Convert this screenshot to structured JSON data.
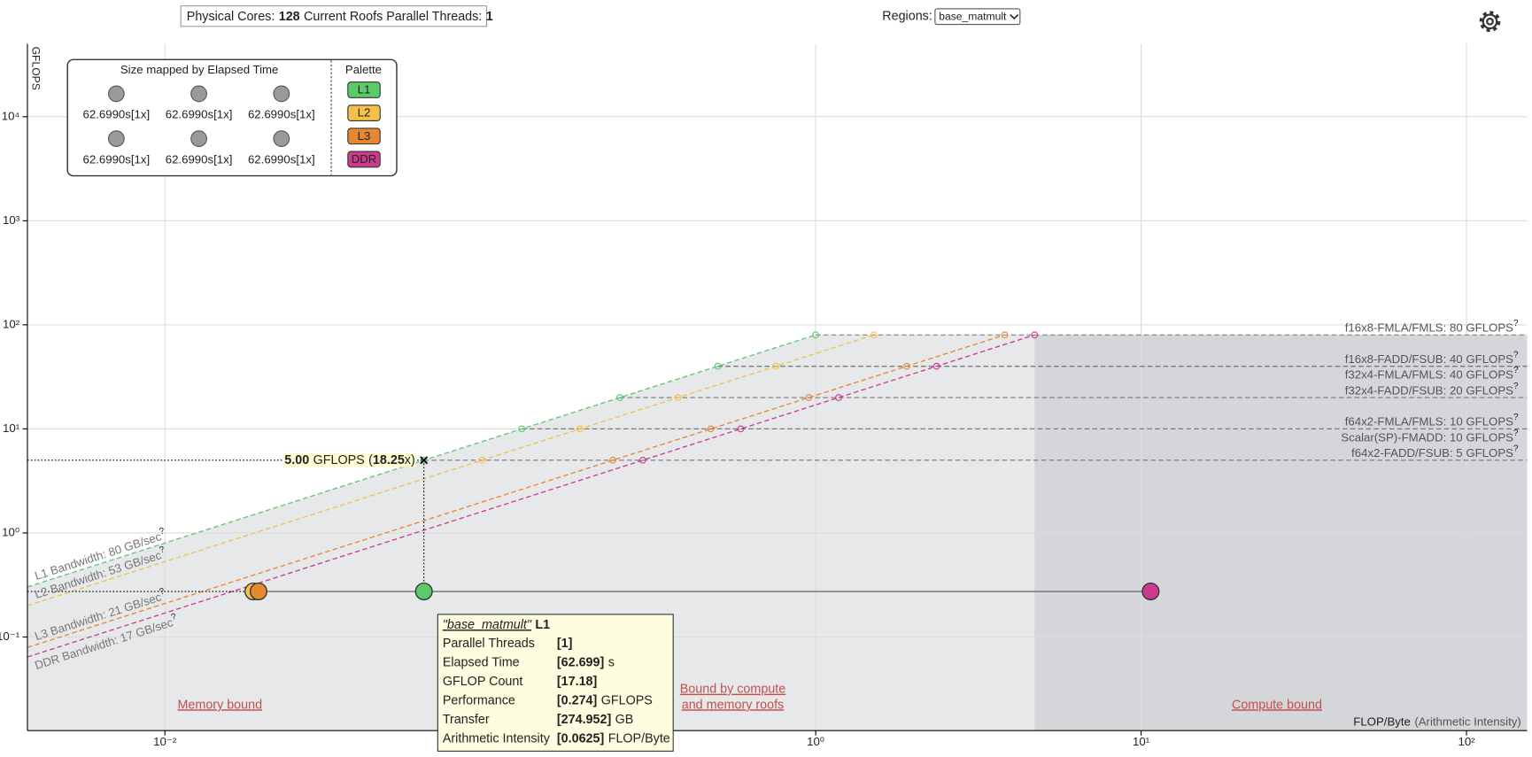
{
  "header": {
    "cores_label": "Physical Cores:",
    "cores": 128,
    "threads_label": "Current Roofs Parallel Threads:",
    "threads": 1,
    "regions_label": "Regions:",
    "region": "base_matmult"
  },
  "chart_data": {
    "type": "roofline",
    "y_label": "GFLOPS",
    "x_label": "FLOP/Byte",
    "x_label_note": "(Arithmetic Intensity)",
    "xscale": "log",
    "yscale": "log",
    "grid": true,
    "xlim": [
      0.00378,
      153.5
    ],
    "ylim": [
      0.0126,
      50000
    ],
    "xticks": [
      {
        "value": 0.01,
        "label": "10⁻²"
      },
      {
        "value": 1,
        "label": "10⁰"
      },
      {
        "value": 10,
        "label": "10¹"
      },
      {
        "value": 100,
        "label": "10²"
      }
    ],
    "yticks": [
      {
        "value": 0.1,
        "label": "10⁻¹"
      },
      {
        "value": 1,
        "label": "10⁰"
      },
      {
        "value": 10,
        "label": "10¹"
      },
      {
        "value": 100,
        "label": "10²"
      },
      {
        "value": 1000,
        "label": "10³"
      },
      {
        "value": 10000,
        "label": "10⁴"
      }
    ],
    "help": "?",
    "compute_roofs": [
      {
        "label": "f16x8-FMLA/FMLS: 80 GFLOPS",
        "value": 80
      },
      {
        "label": "f16x8-FADD/FSUB: 40 GFLOPS",
        "value": 40
      },
      {
        "label": "f32x4-FMLA/FMLS: 40 GFLOPS",
        "value": 40
      },
      {
        "label": "f32x4-FADD/FSUB: 20 GFLOPS",
        "value": 20
      },
      {
        "label": "f64x2-FMLA/FMLS: 10 GFLOPS",
        "value": 10
      },
      {
        "label": "Scalar(SP)-FMADD: 10 GFLOPS",
        "value": 10
      },
      {
        "label": "f64x2-FADD/FSUB: 5 GFLOPS",
        "value": 5
      }
    ],
    "bandwidth_roofs": [
      {
        "label": "L1 Bandwidth: 80 GB/sec",
        "value": 80,
        "color": "#5cc96b"
      },
      {
        "label": "L2 Bandwidth: 53 GB/sec",
        "value": 53,
        "color": "#f5c04a"
      },
      {
        "label": "L3 Bandwidth: 21 GB/sec",
        "value": 21,
        "color": "#e5882f"
      },
      {
        "label": "DDR Bandwidth: 17 GB/sec",
        "value": 17,
        "color": "#cc3a8c"
      }
    ],
    "series": [
      {
        "name": "L1",
        "color": "#5cc96b",
        "x": [
          0.0625
        ],
        "values": [
          0.274
        ]
      },
      {
        "name": "L2",
        "color": "#f5c04a",
        "x": [
          0.0187
        ],
        "values": [
          0.274
        ]
      },
      {
        "name": "L3",
        "color": "#e5882f",
        "x": [
          0.0194
        ],
        "values": [
          0.274
        ]
      },
      {
        "name": "DDR",
        "color": "#cc3a8c",
        "x": [
          10.7
        ],
        "values": [
          0.274
        ]
      }
    ],
    "crosshair": {
      "x": 0.0625,
      "y": 5,
      "y_label": "5.00",
      "unit": "GFLOPS",
      "open": "(",
      "speedup": 18.25,
      "close": "x)"
    },
    "region_labels": [
      "Memory bound",
      "Bound by compute",
      "and memory roofs",
      "Compute bound"
    ],
    "size_legend": {
      "title": "Size mapped by Elapsed Time",
      "items": [
        "62.6990s[1x]",
        "62.6990s[1x]",
        "62.6990s[1x]",
        "62.6990s[1x]",
        "62.6990s[1x]",
        "62.6990s[1x]"
      ],
      "palette_title": "Palette"
    }
  },
  "tooltip": {
    "title": "\"base_matmult\"",
    "level": "L1",
    "rows": [
      {
        "label": "Parallel Threads",
        "value": 1,
        "value_label": "[1]"
      },
      {
        "label": "Elapsed Time",
        "value": 62.699,
        "value_label": "[62.699]",
        "unit": "s"
      },
      {
        "label": "GFLOP Count",
        "value": 17.18,
        "value_label": "[17.18]"
      },
      {
        "label": "Performance",
        "value": 0.274,
        "value_label": "[0.274]",
        "unit": "GFLOPS"
      },
      {
        "label": "Transfer",
        "value": 274.952,
        "value_label": "[274.952]",
        "unit": "GB"
      },
      {
        "label": "Arithmetic Intensity",
        "value": 0.0625,
        "value_label": "[0.0625]",
        "unit": "FLOP/Byte"
      }
    ]
  }
}
